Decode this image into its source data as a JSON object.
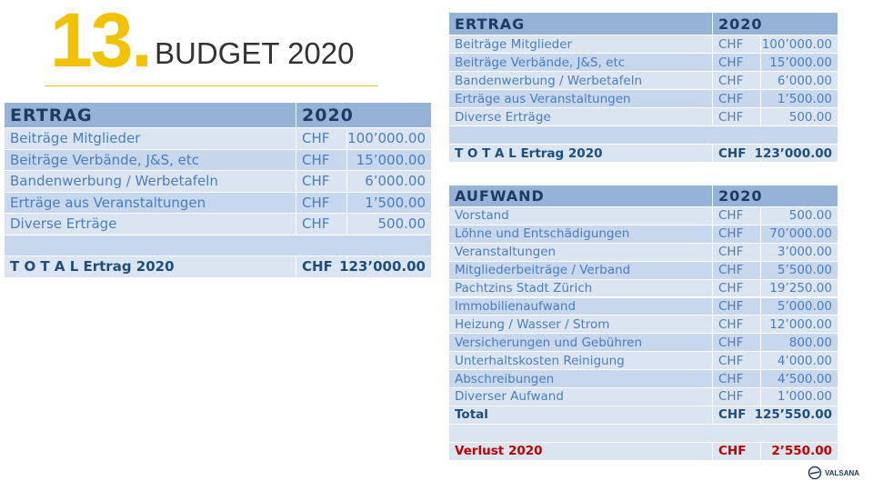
{
  "header": {
    "number": "13.",
    "title": "BUDGET 2020"
  },
  "tables": [
    {
      "heading": "ERTRAG",
      "year": "2020",
      "rows": [
        {
          "label": "Beiträge Mitglieder",
          "currency": "CHF",
          "amount": "100’000.00"
        },
        {
          "label": "Beiträge Verbände,  J&S, etc",
          "currency": "CHF",
          "amount": "15’000.00"
        },
        {
          "label": "Bandenwerbung / Werbetafeln",
          "currency": "CHF",
          "amount": "6’000.00"
        },
        {
          "label": "Erträge aus Veranstaltungen",
          "currency": "CHF",
          "amount": "1’500.00"
        },
        {
          "label": "Diverse Erträge",
          "currency": "CHF",
          "amount": "500.00"
        }
      ],
      "footer": {
        "label": "T O T A L  Ertrag 2020",
        "currency": "CHF",
        "amount": "123’000.00"
      }
    },
    {
      "heading": "ERTRAG",
      "year": "2020",
      "rows": [
        {
          "label": "Beiträge Mitglieder",
          "currency": "CHF",
          "amount": "100’000.00"
        },
        {
          "label": "Beiträge Verbände,  J&S, etc",
          "currency": "CHF",
          "amount": "15’000.00"
        },
        {
          "label": "Bandenwerbung / Werbetafeln",
          "currency": "CHF",
          "amount": "6’000.00"
        },
        {
          "label": "Erträge aus Veranstaltungen",
          "currency": "CHF",
          "amount": "1’500.00"
        },
        {
          "label": "Diverse Erträge",
          "currency": "CHF",
          "amount": "500.00"
        }
      ],
      "footer": {
        "label": "T O T A L  Ertrag 2020",
        "currency": "CHF",
        "amount": "123’000.00"
      }
    },
    {
      "heading": "AUFWAND",
      "year": "2020",
      "rows": [
        {
          "label": "Vorstand",
          "currency": "CHF",
          "amount": "500.00"
        },
        {
          "label": "Löhne und Entschädigungen",
          "currency": "CHF",
          "amount": "70’000.00"
        },
        {
          "label": "Veranstaltungen",
          "currency": "CHF",
          "amount": "3’000.00"
        },
        {
          "label": "Mitgliederbeiträge / Verband",
          "currency": "CHF",
          "amount": "5’500.00"
        },
        {
          "label": "Pachtzins Stadt Zürich",
          "currency": "CHF",
          "amount": "19’250.00"
        },
        {
          "label": "Immobilienaufwand",
          "currency": "CHF",
          "amount": "5’000.00"
        },
        {
          "label": "Heizung / Wasser / Strom",
          "currency": "CHF",
          "amount": "12’000.00"
        },
        {
          "label": "Versicherungen und Gebühren",
          "currency": "CHF",
          "amount": "800.00"
        },
        {
          "label": "Unterhaltskosten Reinigung",
          "currency": "CHF",
          "amount": "4’000.00"
        },
        {
          "label": "Abschreibungen",
          "currency": "CHF",
          "amount": "4’500.00"
        },
        {
          "label": "Diverser Aufwand",
          "currency": "CHF",
          "amount": "1’000.00"
        },
        {
          "label": "Total",
          "currency": "CHF",
          "amount": "125’550.00"
        }
      ],
      "footer": {
        "label": "Verlust 2020",
        "currency": "CHF",
        "amount": "2’550.00"
      }
    }
  ],
  "logo": {
    "text": "VALSANA"
  }
}
